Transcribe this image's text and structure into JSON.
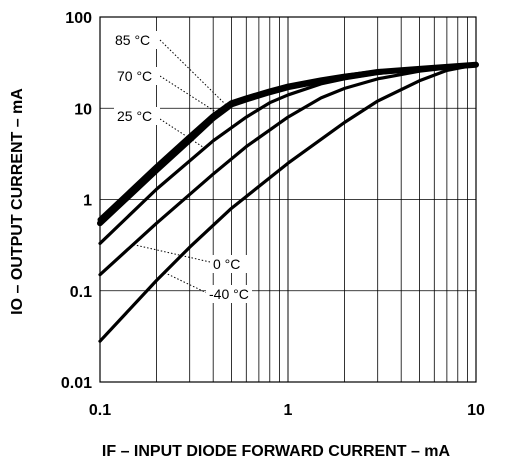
{
  "chart_data": {
    "type": "line",
    "title": "",
    "xlabel": "IF – INPUT DIODE FORWARD CURRENT – mA",
    "ylabel": "IO – OUTPUT CURRENT – mA",
    "x_scale": "log",
    "y_scale": "log",
    "xlim": [
      0.1,
      10
    ],
    "ylim": [
      0.01,
      100
    ],
    "grid": true,
    "legend": "none",
    "x_tick_labels": [
      "0.1",
      "1",
      "10"
    ],
    "y_tick_labels": [
      "100",
      "10",
      "1",
      "0.1",
      "0.01"
    ],
    "x_ticks": [
      0.1,
      1,
      10
    ],
    "y_ticks": [
      100,
      10,
      1,
      0.1,
      0.01
    ],
    "series": [
      {
        "name": "85 °C",
        "x": [
          0.1,
          0.2,
          0.3,
          0.4,
          0.5,
          0.6,
          0.8,
          1,
          1.5,
          2,
          3,
          5,
          10
        ],
        "y": [
          0.55,
          2.1,
          4.5,
          7.8,
          11,
          12.5,
          15,
          17,
          20,
          22,
          25,
          27,
          30
        ]
      },
      {
        "name": "70 °C",
        "x": [
          0.1,
          0.2,
          0.3,
          0.4,
          0.5,
          0.6,
          0.8,
          1,
          1.5,
          2,
          3,
          5,
          10
        ],
        "y": [
          0.6,
          2.3,
          4.9,
          8.3,
          11.5,
          13,
          15.5,
          17.5,
          20.5,
          22.5,
          25,
          27,
          30
        ]
      },
      {
        "name": "25 °C",
        "x": [
          0.1,
          0.2,
          0.4,
          0.6,
          0.8,
          1,
          1.5,
          2,
          3,
          5,
          10
        ],
        "y": [
          0.33,
          1.3,
          4.4,
          8.0,
          11.5,
          14,
          18.5,
          21,
          24,
          27,
          30
        ]
      },
      {
        "name": "0 °C",
        "x": [
          0.1,
          0.2,
          0.4,
          0.6,
          1,
          1.5,
          2,
          3,
          5,
          10
        ],
        "y": [
          0.15,
          0.55,
          1.9,
          3.8,
          8,
          13,
          16.5,
          21,
          25.5,
          30
        ]
      },
      {
        "name": "-40 °C",
        "x": [
          0.1,
          0.2,
          0.3,
          0.5,
          1,
          2,
          3,
          5,
          7,
          10
        ],
        "y": [
          0.028,
          0.13,
          0.3,
          0.8,
          2.5,
          7,
          12,
          20,
          26,
          30
        ]
      }
    ]
  }
}
